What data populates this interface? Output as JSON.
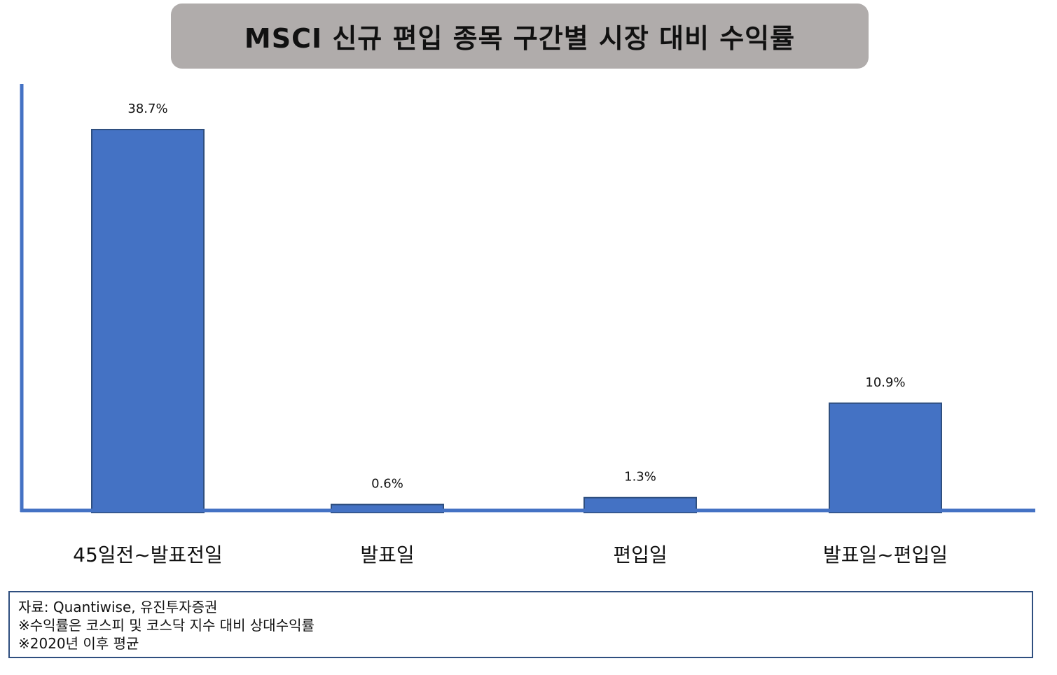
{
  "title": "MSCI 신규 편입 종목 구간별 시장 대비 수익률",
  "colors": {
    "bar_fill": "#4472c4",
    "bar_stroke": "#2f4f7f",
    "axis": "#4472c4",
    "title_bg": "#b0acab",
    "text": "#111111"
  },
  "chart_data": {
    "type": "bar",
    "title": "MSCI 신규 편입 종목 구간별 시장 대비 수익률",
    "categories": [
      "45일전~발표전일",
      "발표일",
      "편입일",
      "발표일~편입일"
    ],
    "values": [
      38.7,
      0.6,
      1.3,
      10.9
    ],
    "data_labels": [
      "38.7%",
      "0.6%",
      "1.3%",
      "10.9%"
    ],
    "xlabel": "",
    "ylabel": "",
    "grid": false,
    "legend": "none"
  },
  "notes": [
    "자료: Quantiwise, 유진투자증권",
    "※수익률은 코스피 및 코스닥 지수 대비 상대수익률",
    "※2020년 이후 평균"
  ]
}
